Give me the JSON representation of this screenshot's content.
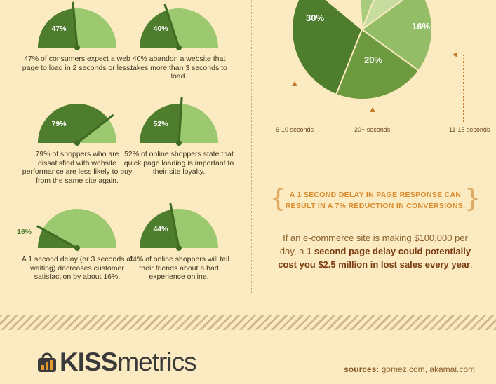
{
  "gauges": [
    {
      "id": "g1",
      "value": 47,
      "label": "47%",
      "caption": "47% of consumers expect a web page to load in 2 seconds or less."
    },
    {
      "id": "g2",
      "value": 40,
      "label": "40%",
      "caption": "40% abandon a website that takes more than 3 seconds to load."
    },
    {
      "id": "g3",
      "value": 79,
      "label": "79%",
      "caption": "79% of shoppers who are dissatisfied with website performance are less likely to buy from the same site again."
    },
    {
      "id": "g4",
      "value": 52,
      "label": "52%",
      "caption": "52% of online shoppers state that quick page loading is important to their site loyalty."
    },
    {
      "id": "g5",
      "value": 16,
      "label": "16%",
      "caption": "A 1 second delay (or 3 seconds of waiting) decreases customer satisfaction by about 16%."
    },
    {
      "id": "g6",
      "value": 44,
      "label": "44%",
      "caption": "44% of online shoppers will tell their friends about a bad experience online."
    }
  ],
  "chart_data": {
    "type": "pie",
    "slices": [
      {
        "label": "30%",
        "value": 30,
        "category": "6-10 seconds",
        "color": "#4f7d2e"
      },
      {
        "label": "20%",
        "value": 20,
        "category": "20+ seconds",
        "color": "#6d9a3f"
      },
      {
        "label": "16%",
        "value": 16,
        "category": "11-15 seconds",
        "color": "#93bd66"
      }
    ],
    "categories": [
      "6-10 seconds",
      "20+ seconds",
      "11-15 seconds"
    ]
  },
  "callout": {
    "text": "A 1 SECOND DELAY IN PAGE RESPONSE CAN RESULT IN A 7% REDUCTION IN CONVERSIONS."
  },
  "paragraph": {
    "lead": "If an e-commerce site is making $100,000 per day, a",
    "bold": "1 second page delay could potentially cost you $2.5 million in lost sales every year",
    "end": "."
  },
  "logo": {
    "kiss": "KISS",
    "metrics": "metrics"
  },
  "sources": {
    "label": "sources:",
    "text": "gomez.com, akamai.com"
  },
  "colors": {
    "dark_green": "#4f7d2e",
    "light_green": "#9cc86f",
    "needle": "#3f6d22",
    "accent": "#d88a2c"
  }
}
